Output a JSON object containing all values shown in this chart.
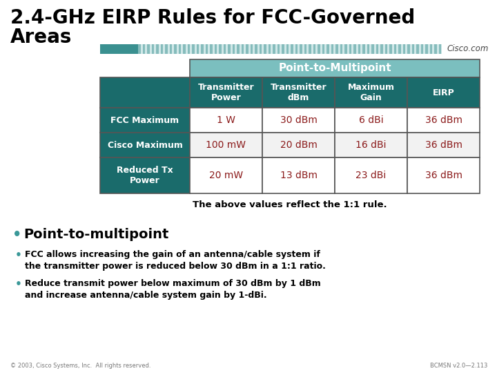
{
  "title_line1": "2.4-GHz EIRP Rules for FCC-Governed",
  "title_line2": "Areas",
  "title_fontsize": 20,
  "title_color": "#000000",
  "background_color": "#ffffff",
  "teal_dark_color": "#1a6b6b",
  "header_bg": "#7bbfbf",
  "table_header_row": [
    "Transmitter\nPower",
    "Transmitter\ndBm",
    "Maximum\nGain",
    "EIRP"
  ],
  "table_rows": [
    [
      "FCC Maximum",
      "1 W",
      "30 dBm",
      "6 dBi",
      "36 dBm"
    ],
    [
      "Cisco Maximum",
      "100 mW",
      "20 dBm",
      "16 dBi",
      "36 dBm"
    ],
    [
      "Reduced Tx\nPower",
      "20 mW",
      "13 dBm",
      "23 dBi",
      "36 dBm"
    ]
  ],
  "data_color": "#8b1a1a",
  "eirp_color": "#8b1a1a",
  "note_text": "The above values reflect the 1:1 rule.",
  "bullet1_main": "Point-to-multipoint",
  "bullet2": "FCC allows increasing the gain of an antenna/cable system if\nthe transmitter power is reduced below 30 dBm in a 1:1 ratio.",
  "bullet3": "Reduce transmit power below maximum of 30 dBm by 1 dBm\nand increase antenna/cable system gain by 1-dBi.",
  "footer_left": "© 2003, Cisco Systems, Inc.  All rights reserved.",
  "footer_right": "BCMSN v2.0—2.113",
  "cisco_text": "Cisco.com",
  "teal_bar_solid": "#3a9090",
  "teal_bar_light": "#a8d0d0",
  "stripe_dark": "#4a9898",
  "stripe_light": "#d0e8e8"
}
